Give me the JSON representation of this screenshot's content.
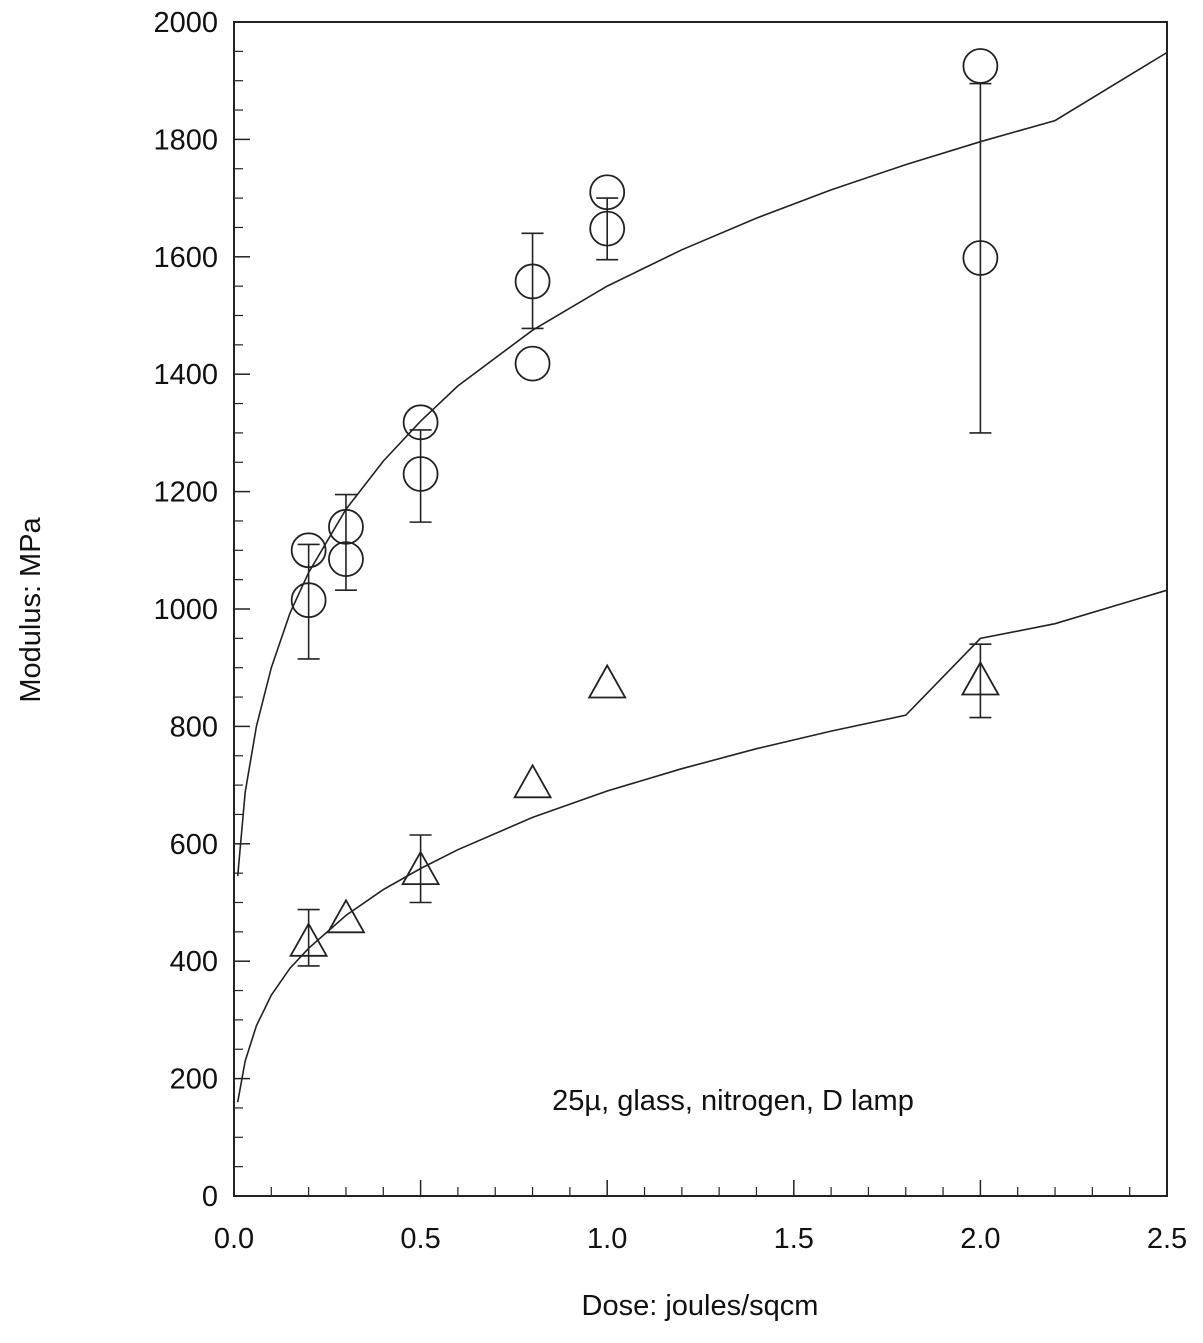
{
  "chart_data": {
    "type": "scatter",
    "title": "",
    "xlabel": "Dose: joules/sqcm",
    "ylabel": "Modulus: MPa",
    "xlim": [
      0,
      2.5
    ],
    "ylim": [
      0,
      2000
    ],
    "x_ticks": [
      0,
      0.5,
      1,
      1.5,
      2,
      2.5
    ],
    "x_tick_labels": [
      "0.0",
      "0.5",
      "1.0",
      "1.5",
      "2.0",
      "2.5"
    ],
    "y_ticks": [
      0,
      200,
      400,
      600,
      800,
      1000,
      1200,
      1400,
      1600,
      1800,
      2000
    ],
    "y_tick_labels": [
      "0",
      "200",
      "400",
      "600",
      "800",
      "1000",
      "1200",
      "1400",
      "1600",
      "1800",
      "2000"
    ],
    "grid": false,
    "legend": "none",
    "annotation": "25µ, glass, nitrogen, D lamp",
    "series": [
      {
        "marker": "circle",
        "points": [
          {
            "x": 0.2,
            "y": 1100
          },
          {
            "x": 0.2,
            "y": 1015
          },
          {
            "x": 0.3,
            "y": 1140
          },
          {
            "x": 0.3,
            "y": 1085
          },
          {
            "x": 0.5,
            "y": 1318
          },
          {
            "x": 0.5,
            "y": 1230
          },
          {
            "x": 0.8,
            "y": 1558
          },
          {
            "x": 0.8,
            "y": 1418
          },
          {
            "x": 1.0,
            "y": 1710
          },
          {
            "x": 1.0,
            "y": 1648
          },
          {
            "x": 2.0,
            "y": 1925
          },
          {
            "x": 2.0,
            "y": 1598
          }
        ],
        "error_bars": [
          {
            "x": 0.2,
            "low": 915,
            "high": 1110
          },
          {
            "x": 0.3,
            "low": 1032,
            "high": 1195
          },
          {
            "x": 0.5,
            "low": 1148,
            "high": 1305
          },
          {
            "x": 0.8,
            "low": 1478,
            "high": 1640
          },
          {
            "x": 1.0,
            "low": 1595,
            "high": 1700
          },
          {
            "x": 2.0,
            "low": 1300,
            "high": 1895
          }
        ],
        "fit_curve": {
          "x": [
            0.01,
            0.03,
            0.06,
            0.1,
            0.15,
            0.2,
            0.3,
            0.4,
            0.5,
            0.6,
            0.8,
            1.0,
            1.2,
            1.4,
            1.6,
            1.8,
            2.0,
            2.2,
            2.5
          ],
          "y": [
            545,
            688,
            800,
            900,
            993,
            1062,
            1170,
            1252,
            1320,
            1380,
            1475,
            1550,
            1612,
            1666,
            1714,
            1757,
            1796,
            1832,
            1948
          ]
        }
      },
      {
        "marker": "triangle",
        "points": [
          {
            "x": 0.2,
            "y": 430
          },
          {
            "x": 0.3,
            "y": 470
          },
          {
            "x": 0.5,
            "y": 552
          },
          {
            "x": 0.8,
            "y": 700
          },
          {
            "x": 1.0,
            "y": 870
          },
          {
            "x": 2.0,
            "y": 875
          }
        ],
        "error_bars": [
          {
            "x": 0.2,
            "low": 392,
            "high": 488
          },
          {
            "x": 0.5,
            "low": 500,
            "high": 615
          },
          {
            "x": 2.0,
            "low": 815,
            "high": 940
          }
        ],
        "fit_curve": {
          "x": [
            0.01,
            0.03,
            0.06,
            0.1,
            0.15,
            0.2,
            0.3,
            0.4,
            0.5,
            0.6,
            0.8,
            1.0,
            1.2,
            1.4,
            1.6,
            1.8,
            2.0,
            2.2,
            2.5
          ],
          "y": [
            160,
            230,
            290,
            342,
            388,
            422,
            478,
            522,
            558,
            590,
            645,
            690,
            728,
            762,
            792,
            819,
            950,
            975,
            1032
          ]
        }
      }
    ]
  }
}
